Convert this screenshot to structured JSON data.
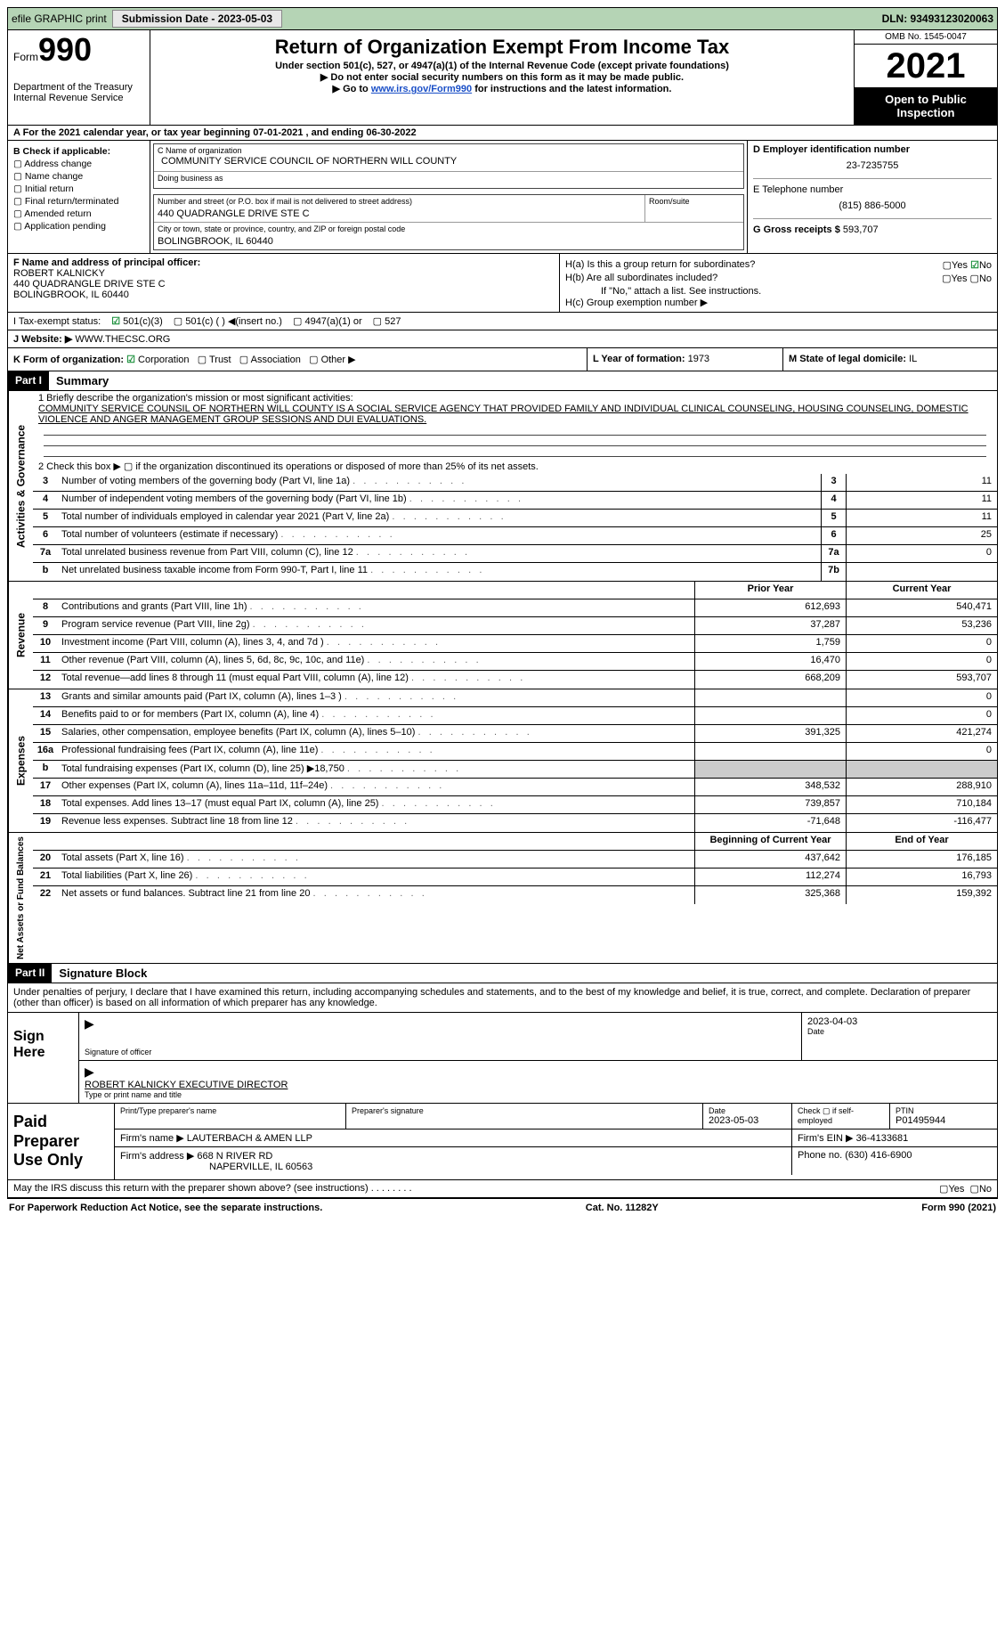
{
  "topbar": {
    "efile": "efile GRAPHIC print",
    "submission_label": "Submission Date - 2023-05-03",
    "dln": "DLN: 93493123020063"
  },
  "header": {
    "form_label": "Form",
    "form_number": "990",
    "dept": "Department of the Treasury\nInternal Revenue Service",
    "title": "Return of Organization Exempt From Income Tax",
    "subtitle": "Under section 501(c), 527, or 4947(a)(1) of the Internal Revenue Code (except private foundations)",
    "note1": "Do not enter social security numbers on this form as it may be made public.",
    "note2_pre": "Go to ",
    "note2_link": "www.irs.gov/Form990",
    "note2_post": " for instructions and the latest information.",
    "omb": "OMB No. 1545-0047",
    "year": "2021",
    "open": "Open to Public Inspection"
  },
  "lineA": "A For the 2021 calendar year, or tax year beginning 07-01-2021   , and ending 06-30-2022",
  "boxB": {
    "title": "B Check if applicable:",
    "items": [
      "Address change",
      "Name change",
      "Initial return",
      "Final return/terminated",
      "Amended return",
      "Application pending"
    ]
  },
  "boxC": {
    "name_label": "C Name of organization",
    "name": "COMMUNITY SERVICE COUNCIL OF NORTHERN WILL COUNTY",
    "dba_label": "Doing business as",
    "dba": "",
    "street_label": "Number and street (or P.O. box if mail is not delivered to street address)",
    "room_label": "Room/suite",
    "street": "440 QUADRANGLE DRIVE STE C",
    "city_label": "City or town, state or province, country, and ZIP or foreign postal code",
    "city": "BOLINGBROOK, IL  60440"
  },
  "boxDE": {
    "d_label": "D Employer identification number",
    "ein": "23-7235755",
    "e_label": "E Telephone number",
    "tel": "(815) 886-5000",
    "g_label_pre": "G Gross receipts $ ",
    "gross": "593,707"
  },
  "boxF": {
    "label": "F Name and address of principal officer:",
    "name": "ROBERT KALNICKY",
    "addr1": "440 QUADRANGLE DRIVE STE C",
    "addr2": "BOLINGBROOK, IL  60440"
  },
  "boxH": {
    "ha": "H(a)  Is this a group return for subordinates?",
    "hb": "H(b)  Are all subordinates included?",
    "hb_note": "If \"No,\" attach a list. See instructions.",
    "hc": "H(c)  Group exemption number ▶",
    "yes": "Yes",
    "no": "No"
  },
  "lineI": {
    "label": "I   Tax-exempt status:",
    "o1": "501(c)(3)",
    "o2": "501(c) (  ) ◀(insert no.)",
    "o3": "4947(a)(1) or",
    "o4": "527"
  },
  "lineJ": {
    "label": "J   Website: ▶",
    "val": "WWW.THECSC.ORG"
  },
  "lineK": {
    "label": "K Form of organization:",
    "corp": "Corporation",
    "trust": "Trust",
    "assoc": "Association",
    "other": "Other ▶",
    "year_label": "L Year of formation:",
    "year": "1973",
    "state_label": "M State of legal domicile:",
    "state": "IL"
  },
  "part1": {
    "tag": "Part I",
    "title": "Summary"
  },
  "mission": {
    "lead": "1   Briefly describe the organization's mission or most significant activities:",
    "text": "COMMUNITY SERVICE COUNSIL OF NORTHERN WILL COUNTY IS A SOCIAL SERVICE AGENCY THAT PROVIDED FAMILY AND INDIVIDUAL CLINICAL COUNSELING, HOUSING COUNSELING, DOMESTIC VIOLENCE AND ANGER MANAGEMENT GROUP SESSIONS AND DUI EVALUATIONS."
  },
  "line2": "2   Check this box ▶ ▢  if the organization discontinued its operations or disposed of more than 25% of its net assets.",
  "gov_rows": [
    {
      "n": "3",
      "label": "Number of voting members of the governing body (Part VI, line 1a)",
      "box": "3",
      "v": "11"
    },
    {
      "n": "4",
      "label": "Number of independent voting members of the governing body (Part VI, line 1b)",
      "box": "4",
      "v": "11"
    },
    {
      "n": "5",
      "label": "Total number of individuals employed in calendar year 2021 (Part V, line 2a)",
      "box": "5",
      "v": "11"
    },
    {
      "n": "6",
      "label": "Total number of volunteers (estimate if necessary)",
      "box": "6",
      "v": "25"
    },
    {
      "n": "7a",
      "label": "Total unrelated business revenue from Part VIII, column (C), line 12",
      "box": "7a",
      "v": "0"
    },
    {
      "n": "b",
      "label": "Net unrelated business taxable income from Form 990-T, Part I, line 11",
      "box": "7b",
      "v": ""
    }
  ],
  "pycy": {
    "prior": "Prior Year",
    "current": "Current Year"
  },
  "rev_rows": [
    {
      "n": "8",
      "label": "Contributions and grants (Part VIII, line 1h)",
      "p": "612,693",
      "c": "540,471"
    },
    {
      "n": "9",
      "label": "Program service revenue (Part VIII, line 2g)",
      "p": "37,287",
      "c": "53,236"
    },
    {
      "n": "10",
      "label": "Investment income (Part VIII, column (A), lines 3, 4, and 7d )",
      "p": "1,759",
      "c": "0"
    },
    {
      "n": "11",
      "label": "Other revenue (Part VIII, column (A), lines 5, 6d, 8c, 9c, 10c, and 11e)",
      "p": "16,470",
      "c": "0"
    },
    {
      "n": "12",
      "label": "Total revenue—add lines 8 through 11 (must equal Part VIII, column (A), line 12)",
      "p": "668,209",
      "c": "593,707"
    }
  ],
  "exp_rows": [
    {
      "n": "13",
      "label": "Grants and similar amounts paid (Part IX, column (A), lines 1–3 )",
      "p": "",
      "c": "0"
    },
    {
      "n": "14",
      "label": "Benefits paid to or for members (Part IX, column (A), line 4)",
      "p": "",
      "c": "0"
    },
    {
      "n": "15",
      "label": "Salaries, other compensation, employee benefits (Part IX, column (A), lines 5–10)",
      "p": "391,325",
      "c": "421,274"
    },
    {
      "n": "16a",
      "label": "Professional fundraising fees (Part IX, column (A), line 11e)",
      "p": "",
      "c": "0"
    },
    {
      "n": "b",
      "label": "Total fundraising expenses (Part IX, column (D), line 25) ▶18,750",
      "p": "__SHADE__",
      "c": "__SHADE__"
    },
    {
      "n": "17",
      "label": "Other expenses (Part IX, column (A), lines 11a–11d, 11f–24e)",
      "p": "348,532",
      "c": "288,910"
    },
    {
      "n": "18",
      "label": "Total expenses. Add lines 13–17 (must equal Part IX, column (A), line 25)",
      "p": "739,857",
      "c": "710,184"
    },
    {
      "n": "19",
      "label": "Revenue less expenses. Subtract line 18 from line 12",
      "p": "-71,648",
      "c": "-116,477"
    }
  ],
  "na_hdr": {
    "b": "Beginning of Current Year",
    "e": "End of Year"
  },
  "na_rows": [
    {
      "n": "20",
      "label": "Total assets (Part X, line 16)",
      "p": "437,642",
      "c": "176,185"
    },
    {
      "n": "21",
      "label": "Total liabilities (Part X, line 26)",
      "p": "112,274",
      "c": "16,793"
    },
    {
      "n": "22",
      "label": "Net assets or fund balances. Subtract line 21 from line 20",
      "p": "325,368",
      "c": "159,392"
    }
  ],
  "part2": {
    "tag": "Part II",
    "title": "Signature Block"
  },
  "decl": "Under penalties of perjury, I declare that I have examined this return, including accompanying schedules and statements, and to the best of my knowledge and belief, it is true, correct, and complete. Declaration of preparer (other than officer) is based on all information of which preparer has any knowledge.",
  "sign": {
    "here": "Sign Here",
    "sig_officer": "Signature of officer",
    "date": "Date",
    "date_val": "2023-04-03",
    "name": "ROBERT KALNICKY  EXECUTIVE DIRECTOR",
    "name_lbl": "Type or print name and title"
  },
  "prep": {
    "title": "Paid Preparer Use Only",
    "r1": {
      "c1": "Print/Type preparer's name",
      "c2": "Preparer's signature",
      "c3l": "Date",
      "c3": "2023-05-03",
      "c4": "Check ▢ if self-employed",
      "c5l": "PTIN",
      "c5": "P01495944"
    },
    "r2": {
      "c1": "Firm's name     ▶",
      "v": "LAUTERBACH & AMEN LLP",
      "c2": "Firm's EIN ▶",
      "v2": "36-4133681"
    },
    "r3": {
      "c1": "Firm's address ▶",
      "v": "668 N RIVER RD",
      "v2": "NAPERVILLE, IL  60563",
      "c2": "Phone no.",
      "p": "(630) 416-6900"
    }
  },
  "may": {
    "q": "May the IRS discuss this return with the preparer shown above? (see instructions)",
    "yes": "Yes",
    "no": "No"
  },
  "footer": {
    "l": "For Paperwork Reduction Act Notice, see the separate instructions.",
    "m": "Cat. No. 11282Y",
    "r": "Form 990 (2021)"
  }
}
